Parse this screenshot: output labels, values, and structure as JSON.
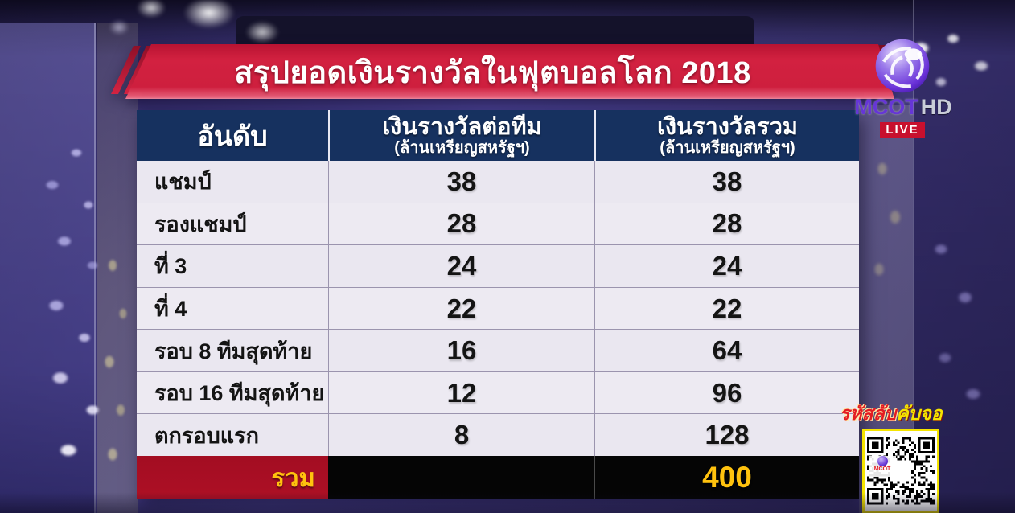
{
  "header": {
    "title": "สรุปยอดเงินรางวัลในฟุตบอลโลก 2018"
  },
  "logo": {
    "name": "MCOT",
    "hd": "HD",
    "live": "LIVE",
    "qr_logo_word": "MCOT"
  },
  "chart_data": {
    "type": "table",
    "title": "สรุปยอดเงินรางวัลในฟุตบอลโลก 2018",
    "columns": [
      "อันดับ",
      "เงินรางวัลต่อทีม (ล้านเหรียญสหรัฐฯ)",
      "เงินรางวัลรวม (ล้านเหรียญสหรัฐฯ)"
    ],
    "rows": [
      [
        "แชมป์",
        38,
        38
      ],
      [
        "รองแชมป์",
        28,
        28
      ],
      [
        "ที่ 3",
        24,
        24
      ],
      [
        "ที่ 4",
        22,
        22
      ],
      [
        "รอบ 8 ทีมสุดท้าย",
        16,
        64
      ],
      [
        "รอบ 16 ทีมสุดท้าย",
        12,
        96
      ],
      [
        "ตกรอบแรก",
        8,
        128
      ]
    ],
    "total_row": {
      "label": "รวม",
      "total": 400
    }
  },
  "table": {
    "col1_header": "อันดับ",
    "col2_header": "เงินรางวัลต่อทีม",
    "col2_subheader": "(ล้านเหรียญสหรัฐฯ)",
    "col3_header": "เงินรางวัลรวม",
    "col3_subheader": "(ล้านเหรียญสหรัฐฯ)",
    "rows": [
      {
        "rank": "แชมป์",
        "per_team": "38",
        "total": "38"
      },
      {
        "rank": "รองแชมป์",
        "per_team": "28",
        "total": "28"
      },
      {
        "rank": "ที่ 3",
        "per_team": "24",
        "total": "24"
      },
      {
        "rank": "ที่ 4",
        "per_team": "22",
        "total": "22"
      },
      {
        "rank": "รอบ 8 ทีมสุดท้าย",
        "per_team": "16",
        "total": "64"
      },
      {
        "rank": "รอบ 16 ทีมสุดท้าย",
        "per_team": "12",
        "total": "96"
      },
      {
        "rank": "ตกรอบแรก",
        "per_team": "8",
        "total": "128"
      }
    ],
    "total": {
      "label": "รวม",
      "value": "400"
    }
  },
  "qr": {
    "caption_red": "รหัสลับ",
    "caption_yellow": "คับจอ"
  },
  "colors": {
    "banner_red": "#ce1f3e",
    "header_navy": "#16315f",
    "total_red": "#a30d22",
    "accent_yellow": "#ffc20e",
    "live_red": "#c8102e",
    "background_purple": "#4a4293"
  }
}
